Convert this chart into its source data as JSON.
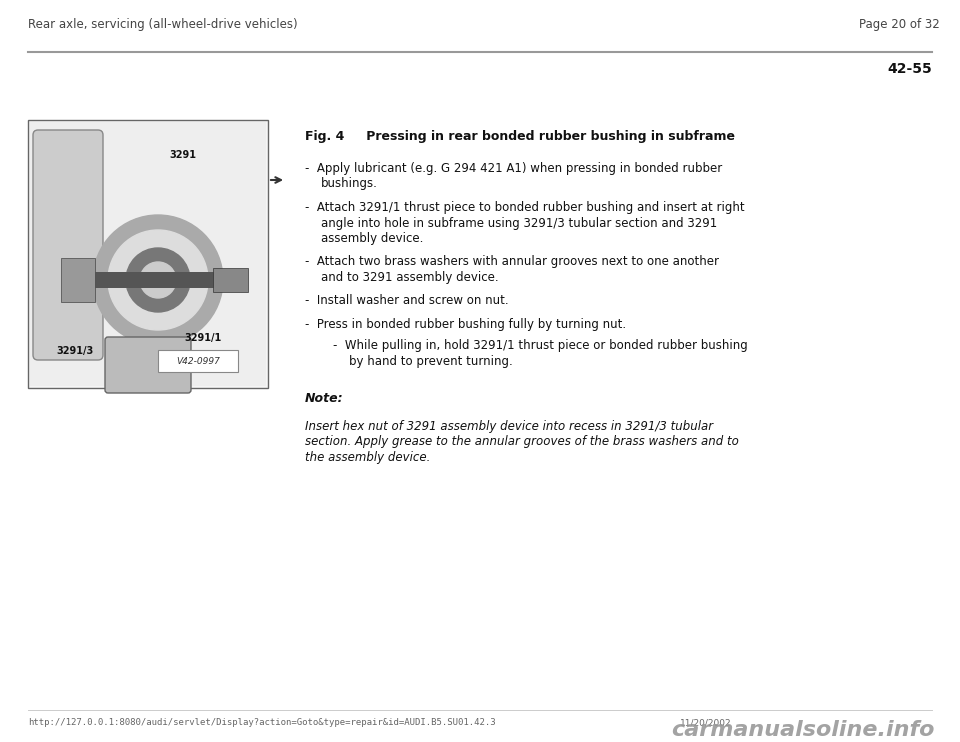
{
  "bg_color": "#ffffff",
  "header_left": "Rear axle, servicing (all-wheel-drive vehicles)",
  "header_right": "Page 20 of 32",
  "section_number": "42-55",
  "fig_title": "Fig. 4     Pressing in rear bonded rubber bushing in subframe",
  "bullet1_line1": "Apply lubricant (e.g. G 294 421 A1) when pressing in bonded rubber",
  "bullet1_line2": "bushings.",
  "bullet2_line1": "Attach 3291/1 thrust piece to bonded rubber bushing and insert at right",
  "bullet2_line2": "angle into hole in subframe using 3291/3 tubular section and 3291",
  "bullet2_line3": "assembly device.",
  "bullet3_line1": "Attach two brass washers with annular grooves next to one another",
  "bullet3_line2": "and to 3291 assembly device.",
  "bullet4": "Install washer and screw on nut.",
  "bullet5": "Press in bonded rubber bushing fully by turning nut.",
  "sub_bullet_line1": "While pulling in, hold 3291/1 thrust piece or bonded rubber bushing",
  "sub_bullet_line2": "by hand to prevent turning.",
  "note_label": "Note:",
  "note_line1": "Insert hex nut of 3291 assembly device into recess in 3291/3 tubular",
  "note_line2": "section. Apply grease to the annular grooves of the brass washers and to",
  "note_line3": "the assembly device.",
  "footer_left": "http://127.0.0.1:8080/audi/servlet/Display?action=Goto&type=repair&id=AUDI.B5.SU01.42.3",
  "footer_right": "11/20/2002",
  "footer_logo": "carmanualsoline.info"
}
